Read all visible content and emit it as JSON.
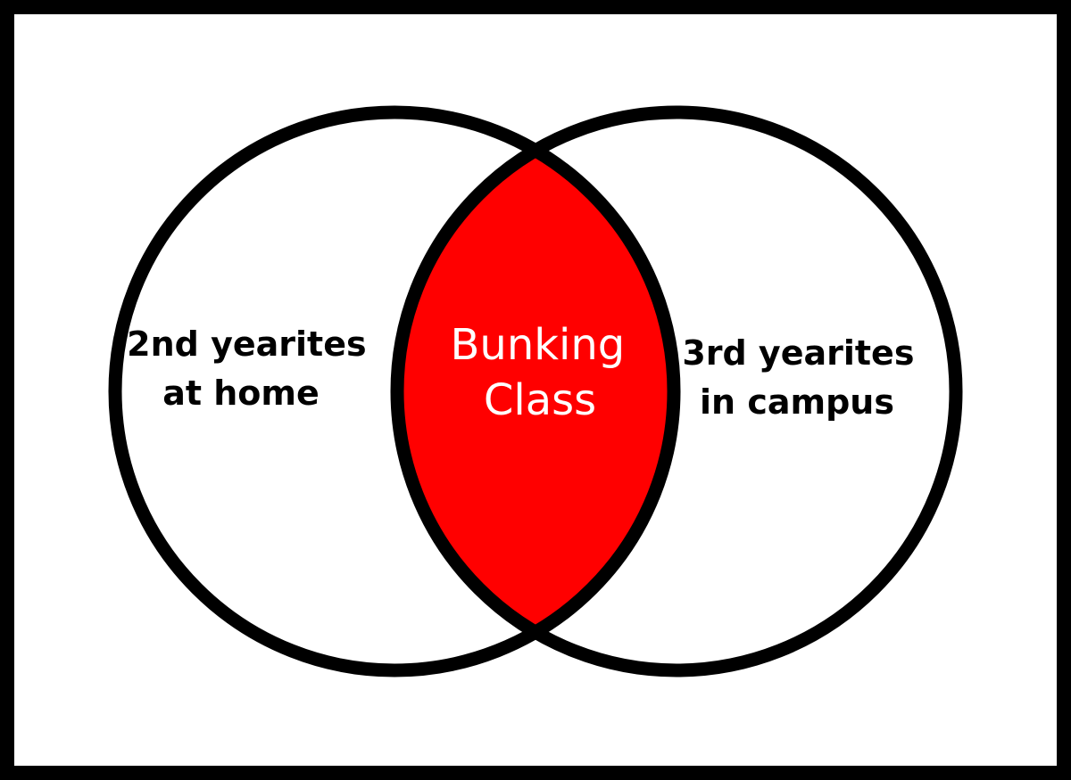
{
  "diagram": {
    "left_set": {
      "lines": [
        "2nd yearites",
        "at home"
      ]
    },
    "right_set": {
      "lines": [
        "3rd yearites",
        "in campus"
      ]
    },
    "intersection": {
      "lines": [
        "Bunking",
        "Class"
      ]
    },
    "colors": {
      "outline": "#000000",
      "intersection_fill": "#ff0000",
      "intersection_text": "#ffffff",
      "set_text": "#000000",
      "background": "#ffffff"
    }
  }
}
